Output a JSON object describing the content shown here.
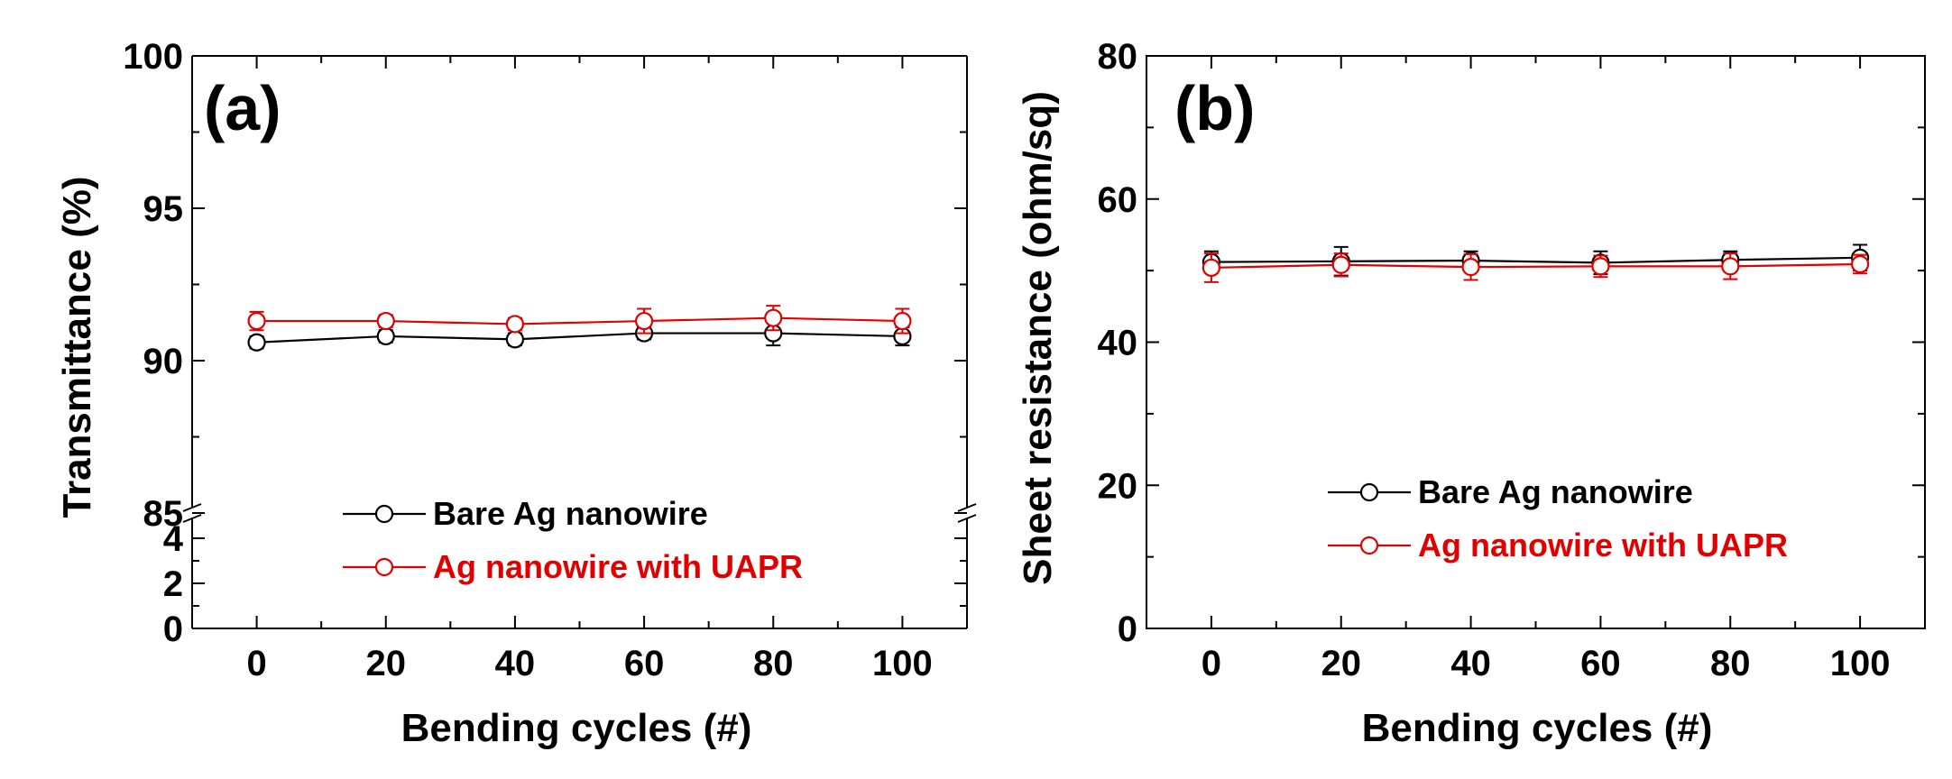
{
  "colors": {
    "bare": "#000000",
    "uapr": "#e00000",
    "axis": "#000000"
  },
  "chart_data": [
    {
      "type": "line",
      "panel_label": "(a)",
      "xlabel": "Bending cycles (#)",
      "ylabel": "Transmittance (%)",
      "xlim": [
        -10,
        110
      ],
      "xticks": [
        0,
        20,
        40,
        60,
        80,
        100
      ],
      "xtick_labels": [
        "0",
        "20",
        "40",
        "60",
        "80",
        "100"
      ],
      "broken_axis": true,
      "ylim_upper": [
        85,
        100
      ],
      "ylim_lower": [
        0,
        4
      ],
      "yticks_upper": [
        85,
        90,
        95,
        100
      ],
      "ytick_labels_upper": [
        "85",
        "90",
        "95",
        "100"
      ],
      "yticks_lower": [
        0,
        2,
        4
      ],
      "ytick_labels_lower": [
        "0",
        "2",
        "4"
      ],
      "legend_position": "bottom-center",
      "series": [
        {
          "name": "Bare Ag nanowire",
          "color": "#000000",
          "marker": "open-circle",
          "x": [
            0,
            20,
            40,
            60,
            80,
            100
          ],
          "y": [
            90.6,
            90.8,
            90.7,
            90.9,
            90.9,
            90.8
          ],
          "err": [
            0.2,
            0.2,
            0.2,
            0.2,
            0.4,
            0.3
          ]
        },
        {
          "name": "Ag nanowire with UAPR",
          "color": "#e00000",
          "marker": "open-circle",
          "x": [
            0,
            20,
            40,
            60,
            80,
            100
          ],
          "y": [
            91.3,
            91.3,
            91.2,
            91.3,
            91.4,
            91.3
          ],
          "err": [
            0.3,
            0.2,
            0.2,
            0.4,
            0.4,
            0.4
          ]
        }
      ]
    },
    {
      "type": "line",
      "panel_label": "(b)",
      "xlabel": "Bending cycles (#)",
      "ylabel": "Sheet resistance (ohm/sq)",
      "xlim": [
        -10,
        110
      ],
      "xticks": [
        0,
        20,
        40,
        60,
        80,
        100
      ],
      "xtick_labels": [
        "0",
        "20",
        "40",
        "60",
        "80",
        "100"
      ],
      "ylim": [
        0,
        80
      ],
      "yticks": [
        0,
        20,
        40,
        60,
        80
      ],
      "ytick_labels": [
        "0",
        "20",
        "40",
        "60",
        "80"
      ],
      "legend_position": "bottom-center",
      "series": [
        {
          "name": "Bare Ag nanowire",
          "color": "#000000",
          "marker": "open-circle",
          "x": [
            0,
            20,
            40,
            60,
            80,
            100
          ],
          "y": [
            51.2,
            51.3,
            51.4,
            51.1,
            51.5,
            51.8
          ],
          "err": [
            1.5,
            2.0,
            1.3,
            1.6,
            1.2,
            1.8
          ]
        },
        {
          "name": "Ag nanowire with UAPR",
          "color": "#e00000",
          "marker": "open-circle",
          "x": [
            0,
            20,
            40,
            60,
            80,
            100
          ],
          "y": [
            50.4,
            50.8,
            50.5,
            50.6,
            50.6,
            50.9
          ],
          "err": [
            2.0,
            1.6,
            1.8,
            1.5,
            1.8,
            1.3
          ]
        }
      ]
    }
  ]
}
